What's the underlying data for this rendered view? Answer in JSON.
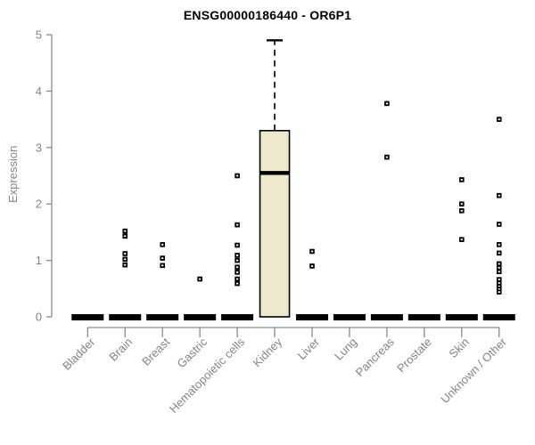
{
  "window": {
    "title": "ENSG00000186440 - OR6P1"
  },
  "chart_data": {
    "type": "boxplot",
    "title": "ENSG00000186440 - OR6P1",
    "xlabel": "",
    "ylabel": "Expression",
    "ylim": [
      0,
      5
    ],
    "yticks": [
      0,
      1,
      2,
      3,
      4,
      5
    ],
    "grid": false,
    "legend": "none",
    "categories": [
      "Bladder",
      "Brain",
      "Breast",
      "Gastric",
      "Hematopoietic cells",
      "Kidney",
      "Liver",
      "Lung",
      "Pancreas",
      "Prostate",
      "Skin",
      "Unknown / Other"
    ],
    "boxes": [
      {
        "category": "Bladder",
        "q1": 0,
        "median": 0,
        "q3": 0,
        "whisker_low": 0,
        "whisker_high": 0
      },
      {
        "category": "Brain",
        "q1": 0,
        "median": 0,
        "q3": 0,
        "whisker_low": 0,
        "whisker_high": 0
      },
      {
        "category": "Breast",
        "q1": 0,
        "median": 0,
        "q3": 0,
        "whisker_low": 0,
        "whisker_high": 0
      },
      {
        "category": "Gastric",
        "q1": 0,
        "median": 0,
        "q3": 0,
        "whisker_low": 0,
        "whisker_high": 0
      },
      {
        "category": "Hematopoietic cells",
        "q1": 0,
        "median": 0,
        "q3": 0,
        "whisker_low": 0,
        "whisker_high": 0
      },
      {
        "category": "Kidney",
        "q1": 0,
        "median": 2.55,
        "q3": 3.3,
        "whisker_low": 0,
        "whisker_high": 4.9
      },
      {
        "category": "Liver",
        "q1": 0,
        "median": 0,
        "q3": 0,
        "whisker_low": 0,
        "whisker_high": 0
      },
      {
        "category": "Lung",
        "q1": 0,
        "median": 0,
        "q3": 0,
        "whisker_low": 0,
        "whisker_high": 0
      },
      {
        "category": "Pancreas",
        "q1": 0,
        "median": 0,
        "q3": 0,
        "whisker_low": 0,
        "whisker_high": 0
      },
      {
        "category": "Prostate",
        "q1": 0,
        "median": 0,
        "q3": 0,
        "whisker_low": 0,
        "whisker_high": 0
      },
      {
        "category": "Skin",
        "q1": 0,
        "median": 0,
        "q3": 0,
        "whisker_low": 0,
        "whisker_high": 0
      },
      {
        "category": "Unknown / Other",
        "q1": 0,
        "median": 0,
        "q3": 0,
        "whisker_low": 0,
        "whisker_high": 0
      }
    ],
    "points": [
      [],
      [
        1.52,
        1.43,
        1.12,
        1.02,
        0.92
      ],
      [
        1.28,
        1.04,
        0.91
      ],
      [
        0.67
      ],
      [
        2.5,
        1.63,
        1.27,
        1.09,
        1.0,
        0.88,
        0.79,
        0.67,
        0.59
      ],
      [],
      [
        1.16,
        0.9
      ],
      [],
      [
        3.78,
        2.83
      ],
      [],
      [
        2.43,
        2.0,
        1.88,
        1.37
      ],
      [
        3.5,
        2.15,
        1.64,
        1.28,
        1.13,
        0.94,
        0.87,
        0.8,
        0.66,
        0.6,
        0.54,
        0.49,
        0.44
      ]
    ],
    "colors": {
      "box_fill": "#EEE8CD",
      "box_border": "#000000",
      "median": "#000000",
      "point": "#000000",
      "axis": "#8a8a8a",
      "tick_text": "#848484",
      "title_text": "#000000",
      "background": "#ffffff"
    }
  }
}
